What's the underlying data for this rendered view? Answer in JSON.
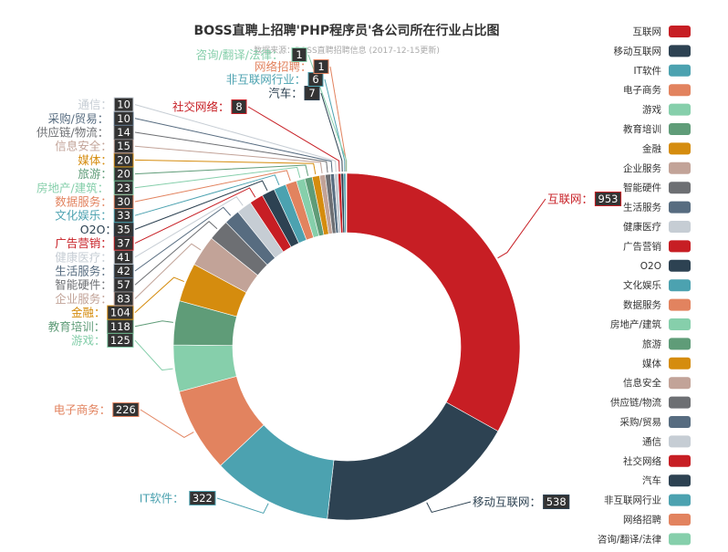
{
  "chart_data": {
    "type": "pie",
    "title": "BOSS直聘上招聘'PHP程序员'各公司所在行业占比图",
    "subtitle": "数据来源：BOSS直聘招聘信息 (2017-12-15更新)",
    "slices": [
      {
        "name": "互联网",
        "value": 953,
        "color": "#c71e24"
      },
      {
        "name": "移动互联网",
        "value": 538,
        "color": "#2d4252"
      },
      {
        "name": "IT软件",
        "value": 322,
        "color": "#4ca2b0"
      },
      {
        "name": "电子商务",
        "value": 226,
        "color": "#e2835f"
      },
      {
        "name": "游戏",
        "value": 125,
        "color": "#86cfab"
      },
      {
        "name": "教育培训",
        "value": 118,
        "color": "#5f9c78"
      },
      {
        "name": "金融",
        "value": 104,
        "color": "#d58c0e"
      },
      {
        "name": "企业服务",
        "value": 83,
        "color": "#c2a398"
      },
      {
        "name": "智能硬件",
        "value": 57,
        "color": "#6d6f73"
      },
      {
        "name": "生活服务",
        "value": 42,
        "color": "#576c80"
      },
      {
        "name": "健康医疗",
        "value": 41,
        "color": "#c6cdd4"
      },
      {
        "name": "广告营销",
        "value": 37,
        "color": "#c71e24"
      },
      {
        "name": "O2O",
        "value": 35,
        "color": "#2d4252"
      },
      {
        "name": "文化娱乐",
        "value": 33,
        "color": "#4ca2b0"
      },
      {
        "name": "数据服务",
        "value": 30,
        "color": "#e2835f"
      },
      {
        "name": "房地产/建筑",
        "value": 23,
        "color": "#86cfab"
      },
      {
        "name": "旅游",
        "value": 20,
        "color": "#5f9c78"
      },
      {
        "name": "媒体",
        "value": 20,
        "color": "#d58c0e"
      },
      {
        "name": "信息安全",
        "value": 15,
        "color": "#c2a398"
      },
      {
        "name": "供应链/物流",
        "value": 14,
        "color": "#6d6f73"
      },
      {
        "name": "采购/贸易",
        "value": 10,
        "color": "#576c80"
      },
      {
        "name": "通信",
        "value": 10,
        "color": "#c6cdd4"
      },
      {
        "name": "社交网络",
        "value": 8,
        "color": "#c71e24"
      },
      {
        "name": "汽车",
        "value": 7,
        "color": "#2d4252"
      },
      {
        "name": "非互联网行业",
        "value": 6,
        "color": "#4ca2b0"
      },
      {
        "name": "网络招聘",
        "value": 1,
        "color": "#e2835f"
      },
      {
        "name": "咨询/翻译/法律",
        "value": 1,
        "color": "#86cfab"
      }
    ],
    "legend_position": "right"
  }
}
